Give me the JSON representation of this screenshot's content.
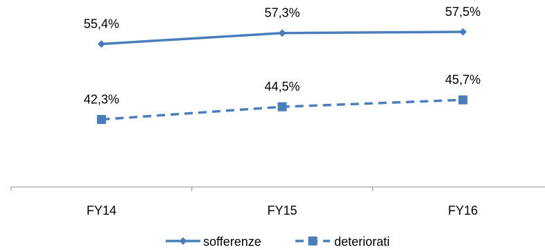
{
  "chart_data": {
    "type": "line",
    "categories": [
      "FY14",
      "FY15",
      "FY16"
    ],
    "series": [
      {
        "name": "sofferenze",
        "values": [
          55.4,
          57.3,
          57.5
        ],
        "labels": [
          "55,4%",
          "57,3%",
          "57,5%"
        ],
        "color": "#4a7ebb",
        "line_style": "solid",
        "marker": "diamond"
      },
      {
        "name": "deteriorati",
        "values": [
          42.3,
          44.5,
          45.7
        ],
        "labels": [
          "42,3%",
          "44,5%",
          "45,7%"
        ],
        "color": "#4a7ebb",
        "line_style": "dashed",
        "marker": "square"
      }
    ],
    "title": "",
    "xlabel": "",
    "ylabel": "",
    "ylim": [
      30,
      60
    ],
    "grid": false,
    "legend_position": "bottom"
  }
}
